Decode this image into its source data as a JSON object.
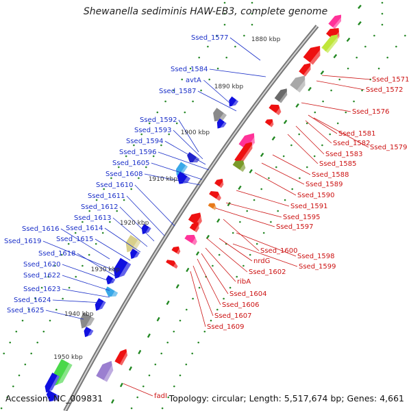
{
  "title": "Shewanella sediminis HAW-EB3, complete genome",
  "footer": {
    "accession": "Accession: NC_009831",
    "topology": "Topology: circular; Length: 5,517,674 bp; Genes: 4,661"
  },
  "scale_labels": [
    "1880 kbp",
    "1890 kbp",
    "1900 kbp",
    "1910 kbp",
    "1920 kbp",
    "1930 kbp",
    "1940 kbp",
    "1950 kbp"
  ],
  "left_labels": [
    "Ssed_1577",
    "Ssed_1584",
    "avtA",
    "Ssed_1587",
    "Ssed_1592",
    "Ssed_1593",
    "Ssed_1594",
    "Ssed_1596",
    "Ssed_1605",
    "Ssed_1608",
    "Ssed_1610",
    "Ssed_1611",
    "Ssed_1612",
    "Ssed_1613",
    "Ssed_1614",
    "Ssed_1616",
    "Ssed_1615",
    "Ssed_1619",
    "Ssed_1618",
    "Ssed_1620",
    "Ssed_1622",
    "Ssed_1623",
    "Ssed_1624",
    "Ssed_1625"
  ],
  "right_labels": [
    "Ssed_1571",
    "Ssed_1572",
    "Ssed_1576",
    "Ssed_1581",
    "Ssed_1582",
    "Ssed_1579",
    "Ssed_1583",
    "Ssed_1585",
    "Ssed_1588",
    "Ssed_1589",
    "Ssed_1590",
    "Ssed_1591",
    "Ssed_1595",
    "Ssed_1597",
    "Ssed_1600",
    "Ssed_1598",
    "nrdG",
    "Ssed_1599",
    "Ssed_1602",
    "ribA",
    "Ssed_1604",
    "Ssed_1606",
    "Ssed_1607",
    "Ssed_1609",
    "fadI"
  ],
  "colors": {
    "left_label": "#1a2fc8",
    "right_label": "#cc1111",
    "backbone": "#888888",
    "forward_arrow": "#1010e0",
    "reverse_arrow": "#ee1111",
    "tick": "#228822"
  }
}
